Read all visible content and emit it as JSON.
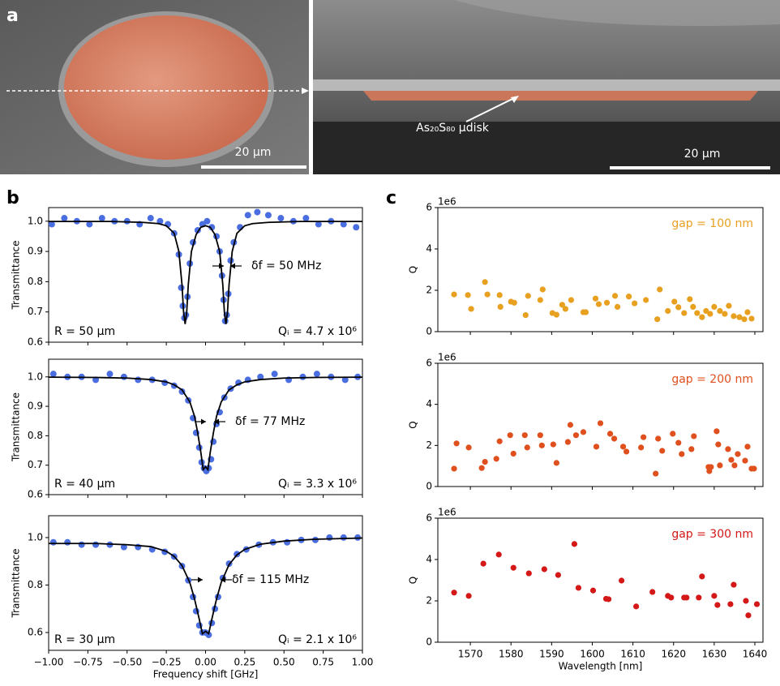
{
  "figure": {
    "panel_labels": [
      "a",
      "b",
      "c"
    ],
    "scale_bars": [
      "20 µm",
      "20 µm"
    ],
    "annotation": "As₂₀S₈₀ µdisk"
  },
  "chart_data": [
    {
      "type": "line",
      "ylabel": "Transmittance",
      "ylim": [
        0.6,
        1.045
      ],
      "yticks": [
        0.6,
        0.7,
        0.8,
        0.9,
        {
          "value": 1,
          "label": "1.0"
        }
      ],
      "xlim": [
        -1,
        1
      ],
      "xticks": [
        -1,
        -0.75,
        -0.5,
        -0.25,
        0,
        0.25,
        0.5,
        0.75,
        1
      ],
      "show_xtick_labels": false,
      "annotations": {
        "radius": "R = 50 µm",
        "q_factor": "Qᵢ = 4.7 x 10⁶",
        "linewidth": "δf = 50 MHz"
      },
      "series": [
        {
          "style": "markers",
          "color": "#4a6ee0",
          "x": [
            -0.98,
            -0.9,
            -0.82,
            -0.74,
            -0.66,
            -0.58,
            -0.5,
            -0.42,
            -0.35,
            -0.29,
            -0.24,
            -0.2,
            -0.17,
            -0.155,
            -0.145,
            -0.135,
            -0.125,
            -0.115,
            -0.1,
            -0.08,
            -0.05,
            -0.02,
            0.01,
            0.04,
            0.07,
            0.09,
            0.105,
            0.115,
            0.125,
            0.135,
            0.145,
            0.16,
            0.18,
            0.22,
            0.27,
            0.33,
            0.4,
            0.48,
            0.56,
            0.64,
            0.72,
            0.8,
            0.88,
            0.96
          ],
          "values": [
            0.99,
            1.01,
            1.0,
            0.99,
            1.01,
            1.0,
            1.0,
            0.99,
            1.01,
            1.0,
            0.99,
            0.96,
            0.89,
            0.78,
            0.72,
            0.68,
            0.69,
            0.75,
            0.86,
            0.93,
            0.97,
            0.99,
            1.0,
            0.98,
            0.95,
            0.9,
            0.82,
            0.74,
            0.67,
            0.69,
            0.76,
            0.87,
            0.93,
            0.98,
            1.02,
            1.03,
            1.02,
            1.01,
            1.0,
            1.01,
            0.99,
            1.0,
            0.99,
            0.98
          ]
        },
        {
          "style": "line",
          "color": "#000000",
          "x": [
            -1,
            -0.8,
            -0.6,
            -0.4,
            -0.3,
            -0.25,
            -0.2,
            -0.17,
            -0.15,
            -0.14,
            -0.13,
            -0.12,
            -0.11,
            -0.09,
            -0.06,
            -0.03,
            0,
            0.03,
            0.06,
            0.09,
            0.11,
            0.12,
            0.13,
            0.14,
            0.15,
            0.17,
            0.2,
            0.25,
            0.3,
            0.4,
            0.6,
            0.8,
            1
          ],
          "values": [
            0.999,
            0.999,
            0.999,
            0.996,
            0.992,
            0.985,
            0.96,
            0.9,
            0.79,
            0.7,
            0.66,
            0.7,
            0.79,
            0.9,
            0.956,
            0.98,
            0.985,
            0.98,
            0.956,
            0.9,
            0.79,
            0.7,
            0.66,
            0.7,
            0.79,
            0.9,
            0.96,
            0.985,
            0.992,
            0.996,
            0.999,
            0.999,
            0.999
          ]
        }
      ]
    },
    {
      "type": "line",
      "ylabel": "Transmittance",
      "ylim": [
        0.6,
        1.06
      ],
      "yticks": [
        0.6,
        0.7,
        0.8,
        0.9,
        {
          "value": 1,
          "label": "1.0"
        }
      ],
      "xlim": [
        -1,
        1
      ],
      "xticks": [
        -1,
        -0.75,
        -0.5,
        -0.25,
        0,
        0.25,
        0.5,
        0.75,
        1
      ],
      "show_xtick_labels": false,
      "annotations": {
        "radius": "R = 40 µm",
        "q_factor": "Qᵢ = 3.3 x 10⁶",
        "linewidth": "δf = 77 MHz"
      },
      "series": [
        {
          "style": "markers",
          "color": "#4a6ee0",
          "x": [
            -0.97,
            -0.88,
            -0.79,
            -0.7,
            -0.61,
            -0.52,
            -0.43,
            -0.34,
            -0.26,
            -0.2,
            -0.15,
            -0.11,
            -0.08,
            -0.06,
            -0.04,
            -0.025,
            -0.01,
            0.005,
            0.02,
            0.035,
            0.05,
            0.07,
            0.09,
            0.12,
            0.16,
            0.21,
            0.27,
            0.35,
            0.44,
            0.53,
            0.62,
            0.71,
            0.8,
            0.89,
            0.97
          ],
          "values": [
            1.01,
            1.0,
            1.0,
            0.99,
            1.01,
            1.0,
            0.99,
            0.99,
            0.98,
            0.97,
            0.95,
            0.92,
            0.86,
            0.81,
            0.76,
            0.71,
            0.69,
            0.68,
            0.69,
            0.72,
            0.78,
            0.84,
            0.88,
            0.93,
            0.96,
            0.98,
            0.99,
            1.0,
            1.01,
            0.99,
            1.0,
            1.01,
            1.0,
            0.99,
            1.0
          ]
        },
        {
          "style": "line",
          "color": "#000000",
          "x": [
            -1,
            -0.7,
            -0.5,
            -0.35,
            -0.25,
            -0.2,
            -0.15,
            -0.1,
            -0.07,
            -0.05,
            -0.03,
            -0.015,
            0,
            0.015,
            0.03,
            0.05,
            0.07,
            0.1,
            0.15,
            0.2,
            0.25,
            0.35,
            0.5,
            0.7,
            1
          ],
          "values": [
            0.999,
            0.998,
            0.996,
            0.991,
            0.983,
            0.973,
            0.956,
            0.915,
            0.866,
            0.81,
            0.744,
            0.685,
            0.695,
            0.685,
            0.744,
            0.81,
            0.866,
            0.915,
            0.956,
            0.973,
            0.983,
            0.991,
            0.996,
            0.998,
            0.999
          ]
        }
      ]
    },
    {
      "type": "line",
      "ylabel": "Transmittance",
      "xlabel": "Frequency shift [GHz]",
      "ylim": [
        0.525,
        1.092
      ],
      "yticks": [
        0.6,
        0.8,
        {
          "value": 1,
          "label": "1.0"
        }
      ],
      "xlim": [
        -1,
        1
      ],
      "xticks": [
        {
          "value": -1,
          "label": "−1.00"
        },
        {
          "value": -0.75,
          "label": "−0.75"
        },
        {
          "value": -0.5,
          "label": "−0.50"
        },
        {
          "value": -0.25,
          "label": "−0.25"
        },
        {
          "value": 0,
          "label": "0.00"
        },
        {
          "value": 0.25,
          "label": "0.25"
        },
        {
          "value": 0.5,
          "label": "0.50"
        },
        {
          "value": 0.75,
          "label": "0.75"
        },
        {
          "value": 1,
          "label": "1.00"
        }
      ],
      "annotations": {
        "radius": "R = 30 µm",
        "q_factor": "Qᵢ = 2.1 x 10⁶",
        "linewidth": "δf = 115 MHz"
      },
      "series": [
        {
          "style": "markers",
          "color": "#4a6ee0",
          "x": [
            -0.97,
            -0.88,
            -0.79,
            -0.7,
            -0.61,
            -0.52,
            -0.43,
            -0.34,
            -0.26,
            -0.2,
            -0.15,
            -0.11,
            -0.08,
            -0.06,
            -0.04,
            -0.02,
            0,
            0.02,
            0.04,
            0.06,
            0.08,
            0.11,
            0.15,
            0.2,
            0.26,
            0.34,
            0.43,
            0.52,
            0.61,
            0.7,
            0.79,
            0.88,
            0.97
          ],
          "values": [
            0.98,
            0.98,
            0.97,
            0.97,
            0.97,
            0.96,
            0.96,
            0.95,
            0.94,
            0.92,
            0.88,
            0.82,
            0.75,
            0.69,
            0.63,
            0.6,
            0.6,
            0.59,
            0.64,
            0.7,
            0.75,
            0.83,
            0.89,
            0.93,
            0.95,
            0.97,
            0.98,
            0.98,
            0.99,
            0.99,
            1.0,
            1.0,
            1.0
          ]
        },
        {
          "style": "line",
          "color": "#000000",
          "x": [
            -1,
            -0.7,
            -0.5,
            -0.35,
            -0.25,
            -0.2,
            -0.15,
            -0.1,
            -0.07,
            -0.04,
            -0.02,
            0,
            0.02,
            0.04,
            0.07,
            0.1,
            0.15,
            0.2,
            0.25,
            0.35,
            0.5,
            0.7,
            1
          ],
          "values": [
            0.975,
            0.975,
            0.97,
            0.962,
            0.942,
            0.921,
            0.882,
            0.81,
            0.741,
            0.656,
            0.595,
            0.605,
            0.595,
            0.656,
            0.741,
            0.811,
            0.886,
            0.927,
            0.95,
            0.972,
            0.985,
            0.993,
            0.998
          ]
        }
      ]
    },
    {
      "type": "scatter",
      "ylabel": "Q",
      "y_offset_label": "1e6",
      "annotation": "gap = 100 nm",
      "color": "#e8a020",
      "ylim": [
        0,
        6
      ],
      "yticks": [
        0,
        2,
        4,
        6
      ],
      "xlim": [
        1562,
        1642
      ],
      "xticks": [
        1570,
        1580,
        1590,
        1600,
        1610,
        1620,
        1630,
        1640
      ],
      "show_xtick_labels": false,
      "x": [
        1566,
        1569.4,
        1570.2,
        1573.6,
        1574.2,
        1577.2,
        1577.4,
        1580,
        1580.8,
        1583.6,
        1584.2,
        1587.2,
        1587.8,
        1590.2,
        1591.2,
        1592.6,
        1593.4,
        1594.8,
        1597.8,
        1598.4,
        1600.8,
        1601.6,
        1603.6,
        1605.6,
        1606.2,
        1609,
        1610.4,
        1613.2,
        1616,
        1616.6,
        1618.6,
        1620.2,
        1621.2,
        1622.6,
        1624,
        1624.8,
        1625.8,
        1627,
        1628,
        1629,
        1630,
        1631.4,
        1632.6,
        1633.6,
        1634.8,
        1636.2,
        1637.4,
        1638.2,
        1639.2
      ],
      "values": [
        1.8,
        1.77,
        1.1,
        2.4,
        1.8,
        1.77,
        1.2,
        1.45,
        1.4,
        0.8,
        1.73,
        1.53,
        2.04,
        0.9,
        0.82,
        1.3,
        1.1,
        1.53,
        0.94,
        0.94,
        1.6,
        1.33,
        1.4,
        1.73,
        1.2,
        1.7,
        1.37,
        1.53,
        0.6,
        2.04,
        1.0,
        1.45,
        1.18,
        0.9,
        1.57,
        1.2,
        0.9,
        0.7,
        1.0,
        0.86,
        1.2,
        1.0,
        0.86,
        1.25,
        0.75,
        0.7,
        0.6,
        0.94,
        0.63
      ]
    },
    {
      "type": "scatter",
      "ylabel": "Q",
      "y_offset_label": "1e6",
      "annotation": "gap = 200 nm",
      "color": "#e0501e",
      "ylim": [
        0,
        6
      ],
      "yticks": [
        0,
        2,
        4,
        6
      ],
      "xlim": [
        1562,
        1642
      ],
      "xticks": [
        1570,
        1580,
        1590,
        1600,
        1610,
        1620,
        1630,
        1640
      ],
      "show_xtick_labels": false,
      "x": [
        1566,
        1566.6,
        1569.6,
        1572.8,
        1573.6,
        1576.4,
        1577.2,
        1579.8,
        1580.6,
        1583.4,
        1584,
        1587.2,
        1587.6,
        1590.4,
        1591.2,
        1594,
        1594.6,
        1596,
        1597.8,
        1601,
        1602,
        1604.4,
        1605.4,
        1607.6,
        1608.4,
        1612,
        1612.6,
        1615.6,
        1616.2,
        1617.2,
        1619.8,
        1621.2,
        1622,
        1624.4,
        1625,
        1628.6,
        1628.8,
        1629.2,
        1630.6,
        1631,
        1631.4,
        1633.4,
        1634.2,
        1635,
        1635.8,
        1637.6,
        1638.2,
        1639.2,
        1639.8
      ],
      "values": [
        0.87,
        2.1,
        1.9,
        0.9,
        1.2,
        1.35,
        2.2,
        2.5,
        1.6,
        2.5,
        1.9,
        2.5,
        2.0,
        2.05,
        1.15,
        2.17,
        3.0,
        2.5,
        2.65,
        1.94,
        3.08,
        2.57,
        2.33,
        1.94,
        1.7,
        1.9,
        2.4,
        0.63,
        2.33,
        1.74,
        2.57,
        2.13,
        1.58,
        1.82,
        2.45,
        0.95,
        0.75,
        0.95,
        2.69,
        2.05,
        1.03,
        1.82,
        1.3,
        1.03,
        1.58,
        1.26,
        1.94,
        0.87,
        0.87
      ]
    },
    {
      "type": "scatter",
      "ylabel": "Q",
      "y_offset_label": "1e6",
      "xlabel": "Wavelength [nm]",
      "annotation": "gap = 300 nm",
      "color": "#d41818",
      "ylim": [
        0,
        6
      ],
      "yticks": [
        0,
        2,
        4,
        6
      ],
      "xlim": [
        1562,
        1642
      ],
      "xticks": [
        1570,
        1580,
        1590,
        1600,
        1610,
        1620,
        1630,
        1640
      ],
      "x": [
        1566,
        1569.6,
        1573.2,
        1577,
        1580.6,
        1584.4,
        1588.2,
        1591.6,
        1595.6,
        1596.6,
        1600.2,
        1603.4,
        1604,
        1607.2,
        1610.8,
        1614.8,
        1618.6,
        1619.4,
        1622.6,
        1623.2,
        1626.2,
        1627,
        1630,
        1630.8,
        1634,
        1634.8,
        1637.8,
        1638.4,
        1640.5
      ],
      "values": [
        2.4,
        2.24,
        3.8,
        4.24,
        3.6,
        3.33,
        3.53,
        3.25,
        4.75,
        2.63,
        2.5,
        2.1,
        2.08,
        2.98,
        1.73,
        2.43,
        2.24,
        2.16,
        2.16,
        2.16,
        2.16,
        3.18,
        2.24,
        1.8,
        1.84,
        2.78,
        2.0,
        1.3,
        1.84
      ]
    }
  ]
}
